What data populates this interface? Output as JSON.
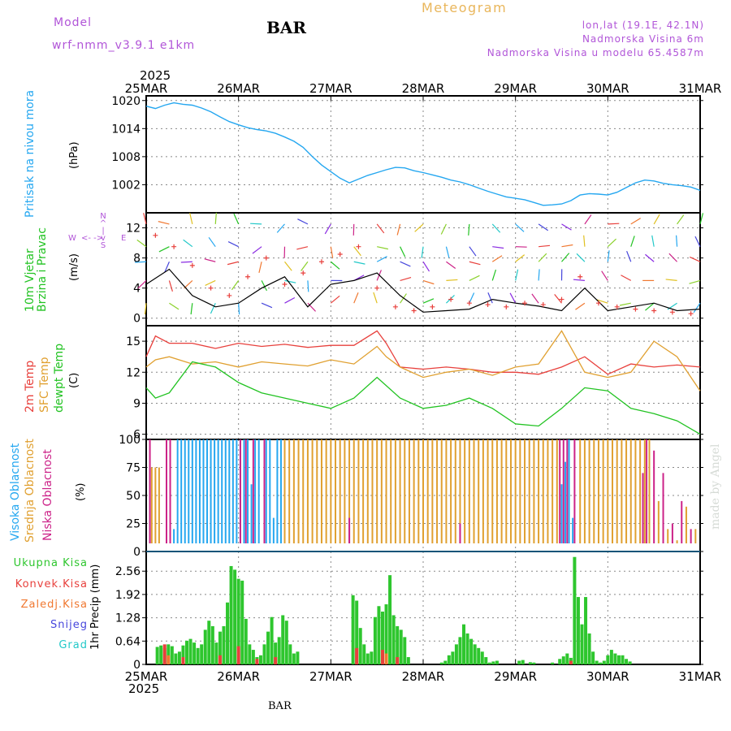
{
  "header": {
    "model_label": "Model",
    "model_name": "wrf-nmm_v3.9.1 e1km",
    "station": "BAR",
    "title": "Meteogram",
    "coords": "lon,lat (19.1E, 42.1N)",
    "elevation": "Nadmorska Visina 6m",
    "model_elevation": "Nadmorska Visina u modelu 65.4587m"
  },
  "footer": {
    "station": "BAR",
    "year": "2025"
  },
  "signature": "made by Angel",
  "colors": {
    "pressure": "#25a7f0",
    "t2m": "#e8403c",
    "sfc": "#e0a030",
    "dewpt": "#22c322",
    "high_cloud": "#25a7f0",
    "mid_cloud": "#e0a030",
    "low_cloud": "#cc2288",
    "rain_total": "#2ec62e",
    "rain_conv": "#e8403c",
    "rain_frozen": "#f07830",
    "snow": "#4646dc",
    "hail": "#22c8c8",
    "wind_speed": "#000000",
    "gust": "#e8403c"
  },
  "chart_data": [
    {
      "type": "line",
      "panel": "pressure",
      "ylabel": "Pritisak na nivou mora",
      "unit": "(hPa)",
      "x_ticks": [
        "25MAR",
        "26MAR",
        "27MAR",
        "28MAR",
        "29MAR",
        "30MAR",
        "31MAR"
      ],
      "ylim": [
        996,
        1021
      ],
      "yticks": [
        1020,
        1014,
        1008,
        1002
      ],
      "grid": true,
      "series": [
        {
          "key": "pressure",
          "x": [
            0,
            0.1,
            0.2,
            0.3,
            0.4,
            0.5,
            0.6,
            0.7,
            0.8,
            0.9,
            1.0,
            1.1,
            1.2,
            1.3,
            1.4,
            1.5,
            1.6,
            1.7,
            1.8,
            1.9,
            2.0,
            2.1,
            2.2,
            2.3,
            2.4,
            2.5,
            2.6,
            2.7,
            2.8,
            2.9,
            3.0,
            3.1,
            3.2,
            3.3,
            3.4,
            3.5,
            3.6,
            3.7,
            3.8,
            3.9,
            4.0,
            4.1,
            4.2,
            4.3,
            4.4,
            4.5,
            4.6,
            4.7,
            4.8,
            4.9,
            5.0,
            5.1,
            5.2,
            5.3,
            5.4,
            5.5,
            5.6,
            5.7,
            5.8,
            5.9,
            6.0
          ],
          "values": [
            1018.8,
            1018.3,
            1019.0,
            1019.5,
            1019.2,
            1019.0,
            1018.4,
            1017.6,
            1016.5,
            1015.5,
            1014.8,
            1014.2,
            1013.8,
            1013.5,
            1013.0,
            1012.2,
            1011.3,
            1010.0,
            1008.0,
            1006.2,
            1004.8,
            1003.4,
            1002.4,
            1003.2,
            1004.0,
            1004.6,
            1005.2,
            1005.7,
            1005.6,
            1005.0,
            1004.6,
            1004.1,
            1003.6,
            1003.0,
            1002.6,
            1002.0,
            1001.3,
            1000.6,
            1000.0,
            999.4,
            999.1,
            998.8,
            998.2,
            997.6,
            997.7,
            997.9,
            998.6,
            999.8,
            1000.1,
            1000.0,
            999.8,
            1000.4,
            1001.4,
            1002.4,
            1003.0,
            1002.8,
            1002.3,
            1002.0,
            1001.8,
            1001.5,
            1000.8
          ]
        }
      ]
    },
    {
      "type": "line",
      "panel": "wind",
      "ylabel": "10m Vjetar Brzina i Pravac",
      "unit": "(m/s)",
      "compass": {
        "n": "N",
        "s": "S",
        "e": "E",
        "w": "W"
      },
      "ylim": [
        -1,
        14
      ],
      "yticks": [
        12,
        8,
        4,
        0
      ],
      "grid": true,
      "series": [
        {
          "key": "wind_speed",
          "x": [
            0,
            0.25,
            0.5,
            0.75,
            1.0,
            1.25,
            1.5,
            1.75,
            2.0,
            2.25,
            2.5,
            2.75,
            3.0,
            3.25,
            3.5,
            3.75,
            4.0,
            4.25,
            4.5,
            4.75,
            5.0,
            5.25,
            5.5,
            5.75,
            6.0
          ],
          "values": [
            4.5,
            6.5,
            3.0,
            1.5,
            2.0,
            4.0,
            5.5,
            1.5,
            4.5,
            5.0,
            6.0,
            3.0,
            0.8,
            1.0,
            1.2,
            2.5,
            2.0,
            1.6,
            1.0,
            4.0,
            1.0,
            1.5,
            2.0,
            1.0,
            1.2
          ]
        },
        {
          "key": "gust",
          "name": "",
          "marker": "+",
          "x": [
            0.1,
            0.3,
            0.5,
            0.7,
            0.9,
            1.1,
            1.3,
            1.5,
            1.7,
            1.9,
            2.1,
            2.3,
            2.5,
            2.7,
            2.9,
            3.1,
            3.3,
            3.5,
            3.7,
            3.9,
            4.1,
            4.3,
            4.5,
            4.7,
            4.9,
            5.1,
            5.3,
            5.5,
            5.7,
            5.9
          ],
          "values": [
            11.0,
            9.5,
            7.0,
            4.0,
            3.0,
            5.5,
            8.0,
            4.5,
            6.0,
            7.5,
            8.5,
            9.5,
            4.0,
            1.5,
            1.0,
            1.5,
            2.5,
            2.0,
            1.8,
            1.5,
            2.0,
            1.8,
            2.5,
            5.5,
            2.0,
            1.5,
            1.2,
            1.0,
            0.8,
            0.6
          ]
        }
      ]
    },
    {
      "type": "line",
      "panel": "temperature",
      "ylabel_lines": [
        "2m Temp",
        "SFC Temp",
        "dewpt Temp"
      ],
      "unit": "(C)",
      "ylim": [
        5.5,
        16.5
      ],
      "yticks": [
        15,
        12,
        9,
        6
      ],
      "grid": true,
      "series": [
        {
          "key": "t2m",
          "name": "2m Temp",
          "x": [
            0,
            0.1,
            0.25,
            0.5,
            0.75,
            1.0,
            1.25,
            1.5,
            1.75,
            2.0,
            2.25,
            2.5,
            2.6,
            2.75,
            3.0,
            3.25,
            3.5,
            3.75,
            4.0,
            4.25,
            4.5,
            4.75,
            5.0,
            5.25,
            5.5,
            5.75,
            6.0
          ],
          "values": [
            13.5,
            15.5,
            14.8,
            14.8,
            14.3,
            14.8,
            14.5,
            14.7,
            14.4,
            14.6,
            14.6,
            16.0,
            14.8,
            12.5,
            12.3,
            12.5,
            12.3,
            12.0,
            12.0,
            11.8,
            12.5,
            13.5,
            11.8,
            12.8,
            12.5,
            12.7,
            12.5
          ]
        },
        {
          "key": "sfc",
          "name": "SFC Temp",
          "x": [
            0,
            0.1,
            0.25,
            0.5,
            0.75,
            1.0,
            1.25,
            1.5,
            1.75,
            2.0,
            2.25,
            2.5,
            2.6,
            2.75,
            3.0,
            3.25,
            3.5,
            3.75,
            4.0,
            4.25,
            4.5,
            4.75,
            5.0,
            5.25,
            5.5,
            5.75,
            6.0
          ],
          "values": [
            12.5,
            13.2,
            13.5,
            12.8,
            13.0,
            12.5,
            13.0,
            12.8,
            12.6,
            13.2,
            12.8,
            14.5,
            13.5,
            12.5,
            11.5,
            12.0,
            12.3,
            11.7,
            12.5,
            12.8,
            16.0,
            12.0,
            11.5,
            12.0,
            15.0,
            13.5,
            10.2
          ]
        },
        {
          "key": "dewpt",
          "name": "dewpt Temp",
          "x": [
            0,
            0.1,
            0.25,
            0.5,
            0.75,
            1.0,
            1.25,
            1.5,
            1.75,
            2.0,
            2.25,
            2.5,
            2.75,
            3.0,
            3.25,
            3.5,
            3.75,
            4.0,
            4.25,
            4.5,
            4.75,
            5.0,
            5.25,
            5.5,
            5.75,
            6.0
          ],
          "values": [
            10.5,
            9.5,
            10.0,
            13.0,
            12.5,
            11.0,
            10.0,
            9.5,
            9.0,
            8.5,
            9.5,
            11.5,
            9.5,
            8.5,
            8.8,
            9.5,
            8.5,
            7.0,
            6.8,
            8.5,
            10.5,
            10.2,
            8.5,
            8.0,
            7.3,
            6.0
          ]
        }
      ]
    },
    {
      "type": "bar",
      "panel": "cloud",
      "ylabel_lines": [
        "Visoka Oblacnost",
        "Srednja Oblacnost",
        "Niska Oblacnost"
      ],
      "unit": "(%)",
      "ylim": [
        0,
        100
      ],
      "yticks": [
        100,
        75,
        50,
        25,
        0
      ],
      "grid": true,
      "series": [
        {
          "key": "high_cloud",
          "name": "Visoka Oblacnost",
          "x": [
            0.3,
            0.34,
            0.38,
            0.42,
            0.46,
            0.5,
            0.54,
            0.58,
            0.62,
            0.66,
            0.7,
            0.74,
            0.78,
            0.82,
            0.86,
            0.9,
            0.94,
            0.98,
            1.02,
            1.06,
            1.1,
            1.14,
            1.18,
            1.22,
            1.3,
            1.34,
            1.38,
            1.42,
            1.46,
            4.5,
            4.54,
            4.58,
            4.62
          ],
          "values": [
            20,
            100,
            100,
            100,
            100,
            100,
            100,
            100,
            100,
            100,
            100,
            100,
            100,
            100,
            100,
            100,
            100,
            100,
            100,
            100,
            100,
            60,
            100,
            100,
            100,
            100,
            30,
            100,
            100,
            60,
            80,
            100,
            30
          ]
        },
        {
          "key": "mid_cloud",
          "name": "Srednja Oblacnost",
          "x": [
            0.06,
            0.1,
            0.14,
            1.5,
            1.55,
            1.6,
            1.65,
            1.7,
            1.75,
            1.8,
            1.85,
            1.9,
            1.95,
            2.0,
            2.05,
            2.1,
            2.15,
            2.2,
            2.25,
            2.3,
            2.35,
            2.4,
            2.45,
            2.5,
            2.55,
            2.6,
            2.65,
            2.7,
            2.75,
            2.8,
            2.85,
            2.9,
            2.95,
            3.0,
            3.05,
            3.1,
            3.15,
            3.2,
            3.25,
            3.3,
            3.35,
            3.4,
            3.45,
            3.5,
            3.55,
            3.6,
            3.65,
            3.7,
            3.75,
            3.8,
            3.85,
            3.9,
            3.95,
            4.0,
            4.05,
            4.1,
            4.15,
            4.2,
            4.25,
            4.3,
            4.35,
            4.4,
            4.45,
            4.7,
            4.75,
            4.8,
            4.85,
            4.9,
            4.95,
            5.0,
            5.05,
            5.1,
            5.15,
            5.2,
            5.25,
            5.3,
            5.35,
            5.4,
            5.45,
            5.55,
            5.65,
            5.75,
            5.85,
            5.95
          ],
          "values": [
            75,
            75,
            75,
            100,
            100,
            100,
            100,
            100,
            100,
            100,
            100,
            100,
            100,
            100,
            100,
            100,
            100,
            100,
            100,
            100,
            100,
            100,
            100,
            100,
            100,
            100,
            100,
            100,
            100,
            100,
            100,
            100,
            100,
            100,
            100,
            100,
            100,
            100,
            100,
            100,
            100,
            100,
            100,
            100,
            100,
            100,
            100,
            100,
            100,
            100,
            100,
            100,
            100,
            100,
            100,
            100,
            100,
            100,
            100,
            100,
            100,
            100,
            100,
            100,
            100,
            100,
            100,
            100,
            100,
            100,
            100,
            100,
            100,
            100,
            100,
            100,
            100,
            100,
            100,
            45,
            20,
            10,
            40,
            20
          ]
        },
        {
          "key": "low_cloud",
          "name": "Niska Oblacnost",
          "x": [
            0.04,
            0.22,
            0.26,
            1.02,
            1.08,
            1.16,
            1.28,
            2.2,
            3.4,
            4.48,
            4.52,
            4.56,
            4.64,
            5.38,
            5.42,
            5.5,
            5.6,
            5.7,
            5.8,
            5.9
          ],
          "values": [
            100,
            100,
            100,
            100,
            100,
            100,
            100,
            30,
            25,
            100,
            100,
            100,
            100,
            70,
            100,
            90,
            70,
            25,
            45,
            20
          ]
        }
      ]
    },
    {
      "type": "bar",
      "panel": "precip",
      "ylabel": "1hr Precip (mm)",
      "ylim": [
        0,
        3.1
      ],
      "yticks": [
        2.56,
        1.92,
        1.28,
        0.64,
        0
      ],
      "grid": true,
      "legend": [
        "Ukupna Kisa",
        "Konvek.Kisa",
        "Zaledj.Kisa",
        "Snijeg",
        "Grad"
      ],
      "series": [
        {
          "key": "rain_total",
          "name": "Ukupna Kisa",
          "x": [
            0.12,
            0.16,
            0.2,
            0.24,
            0.28,
            0.32,
            0.36,
            0.4,
            0.44,
            0.48,
            0.52,
            0.56,
            0.6,
            0.64,
            0.68,
            0.72,
            0.76,
            0.8,
            0.84,
            0.88,
            0.92,
            0.96,
            1.0,
            1.04,
            1.08,
            1.12,
            1.16,
            1.2,
            1.24,
            1.28,
            1.32,
            1.36,
            1.4,
            1.44,
            1.48,
            1.52,
            1.56,
            1.6,
            1.64,
            2.24,
            2.28,
            2.32,
            2.36,
            2.4,
            2.44,
            2.48,
            2.52,
            2.56,
            2.6,
            2.64,
            2.68,
            2.72,
            2.76,
            2.8,
            2.84,
            3.2,
            3.24,
            3.28,
            3.32,
            3.36,
            3.4,
            3.44,
            3.48,
            3.52,
            3.56,
            3.6,
            3.64,
            3.68,
            3.72,
            3.76,
            3.8,
            4.04,
            4.08,
            4.16,
            4.2,
            4.4,
            4.48,
            4.52,
            4.56,
            4.6,
            4.64,
            4.68,
            4.72,
            4.76,
            4.8,
            4.84,
            4.88,
            4.92,
            4.96,
            5.0,
            5.04,
            5.08,
            5.12,
            5.16,
            5.2,
            5.24
          ],
          "values": [
            0.48,
            0.52,
            0.45,
            0.55,
            0.5,
            0.3,
            0.35,
            0.52,
            0.65,
            0.7,
            0.6,
            0.45,
            0.55,
            0.95,
            1.2,
            1.05,
            0.6,
            0.9,
            1.05,
            1.7,
            2.7,
            2.6,
            2.35,
            2.3,
            1.25,
            0.55,
            0.4,
            0.2,
            0.25,
            0.55,
            0.9,
            1.3,
            0.6,
            0.75,
            1.35,
            1.2,
            0.55,
            0.3,
            0.35,
            1.9,
            1.75,
            1.0,
            0.55,
            0.3,
            0.35,
            1.3,
            1.6,
            1.45,
            1.65,
            2.45,
            1.35,
            1.05,
            0.95,
            0.75,
            0.2,
            0.05,
            0.1,
            0.25,
            0.35,
            0.55,
            0.75,
            1.1,
            0.85,
            0.7,
            0.55,
            0.45,
            0.35,
            0.2,
            0.05,
            0.08,
            0.1,
            0.1,
            0.12,
            0.06,
            0.05,
            0.05,
            0.15,
            0.22,
            0.3,
            0.18,
            2.95,
            1.85,
            1.1,
            1.85,
            0.85,
            0.35,
            0.1,
            0.05,
            0.1,
            0.25,
            0.4,
            0.3,
            0.25,
            0.25,
            0.15,
            0.08
          ]
        },
        {
          "key": "rain_conv",
          "name": "Konvek.Kisa",
          "x": [
            0.2,
            0.4,
            0.8,
            1.0,
            1.2,
            1.4,
            2.28,
            2.56,
            2.72,
            4.6
          ],
          "values": [
            0.55,
            0.2,
            0.25,
            0.5,
            0.15,
            0.2,
            0.45,
            0.4,
            0.2,
            0.1
          ]
        },
        {
          "key": "rain_frozen",
          "name": "Zaledj.Kisa",
          "x": [
            0.24,
            2.6
          ],
          "values": [
            0.25,
            0.3
          ]
        }
      ]
    }
  ]
}
